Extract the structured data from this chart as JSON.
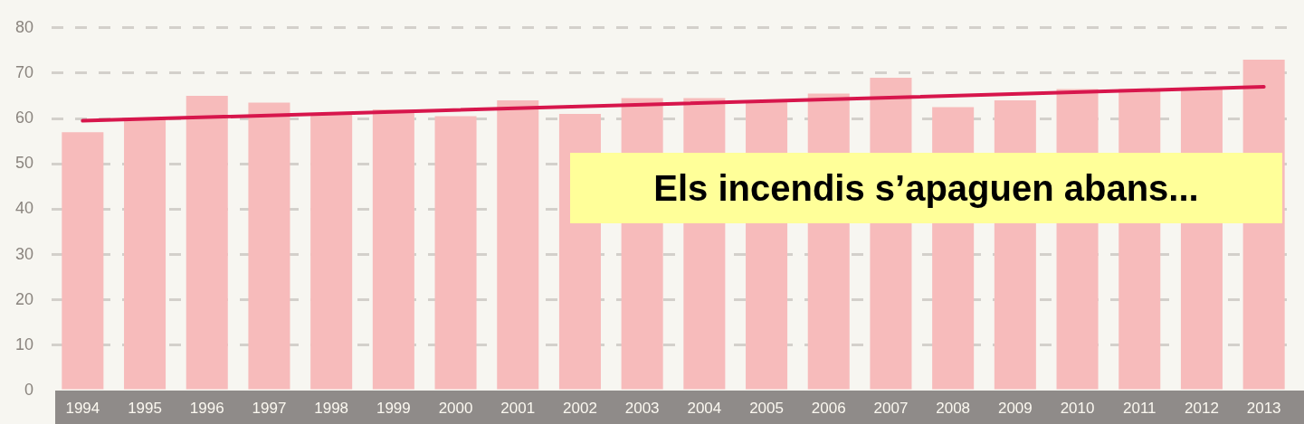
{
  "chart_data": {
    "type": "bar",
    "categories": [
      "1994",
      "1995",
      "1996",
      "1997",
      "1998",
      "1999",
      "2000",
      "2001",
      "2002",
      "2003",
      "2004",
      "2005",
      "2006",
      "2007",
      "2008",
      "2009",
      "2010",
      "2011",
      "2012",
      "2013"
    ],
    "series": [
      {
        "color": "#f7bbbb",
        "values": [
          57,
          60,
          65,
          63.5,
          61,
          62,
          60.5,
          64,
          61,
          64.5,
          64.5,
          64,
          65.5,
          69,
          62.5,
          64,
          66.5,
          66.5,
          66.5,
          73
        ]
      },
      {
        "type": "line",
        "color": "#d7164c",
        "values": [
          59.5,
          null,
          null,
          null,
          null,
          null,
          null,
          null,
          null,
          null,
          null,
          null,
          null,
          null,
          null,
          null,
          null,
          null,
          null,
          67
        ]
      }
    ],
    "ylim": [
      0,
      80
    ],
    "yticks": [
      0,
      10,
      20,
      30,
      40,
      50,
      60,
      70,
      80
    ],
    "grid": "y",
    "legend": false,
    "marker": "none",
    "line_style": "solid",
    "annotations": [
      "Els incendis s’apaguen abans..."
    ]
  }
}
